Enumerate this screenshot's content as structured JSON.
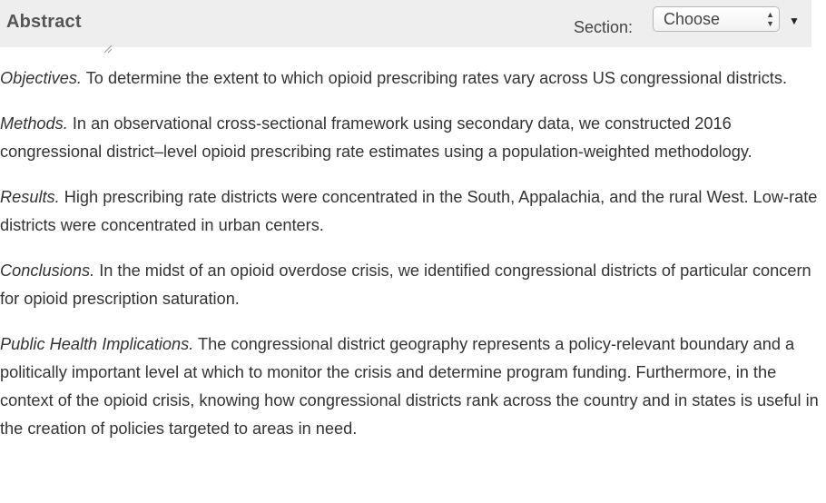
{
  "header": {
    "title": "Abstract",
    "section_label": "Section:",
    "section_select": {
      "selected": "Choose"
    }
  },
  "abstract": [
    {
      "heading": "Objectives.",
      "text": " To determine the extent to which opioid prescribing rates vary across US congressional districts."
    },
    {
      "heading": "Methods.",
      "text": " In an observational cross-sectional framework using secondary data, we constructed 2016 congressional district–level opioid prescribing rate estimates using a population-weighted methodology."
    },
    {
      "heading": "Results.",
      "text": " High prescribing rate districts were concentrated in the South, Appalachia, and the rural West. Low-rate districts were concentrated in urban centers."
    },
    {
      "heading": "Conclusions.",
      "text": " In the midst of an opioid overdose crisis, we identified congressional districts of particular concern for opioid prescription saturation."
    },
    {
      "heading": "Public Health Implications.",
      "text": " The congressional district geography represents a policy-relevant boundary and a politically important level at which to monitor the crisis and determine program funding. Furthermore, in the context of the opioid crisis, knowing how congressional districts rank across the country and in states is useful in the creation of policies targeted to areas in need."
    }
  ],
  "icons": {
    "select_arrows": "up-down-arrows-icon",
    "toggle": "caret-down-icon",
    "resize": "resize-handle-icon"
  }
}
